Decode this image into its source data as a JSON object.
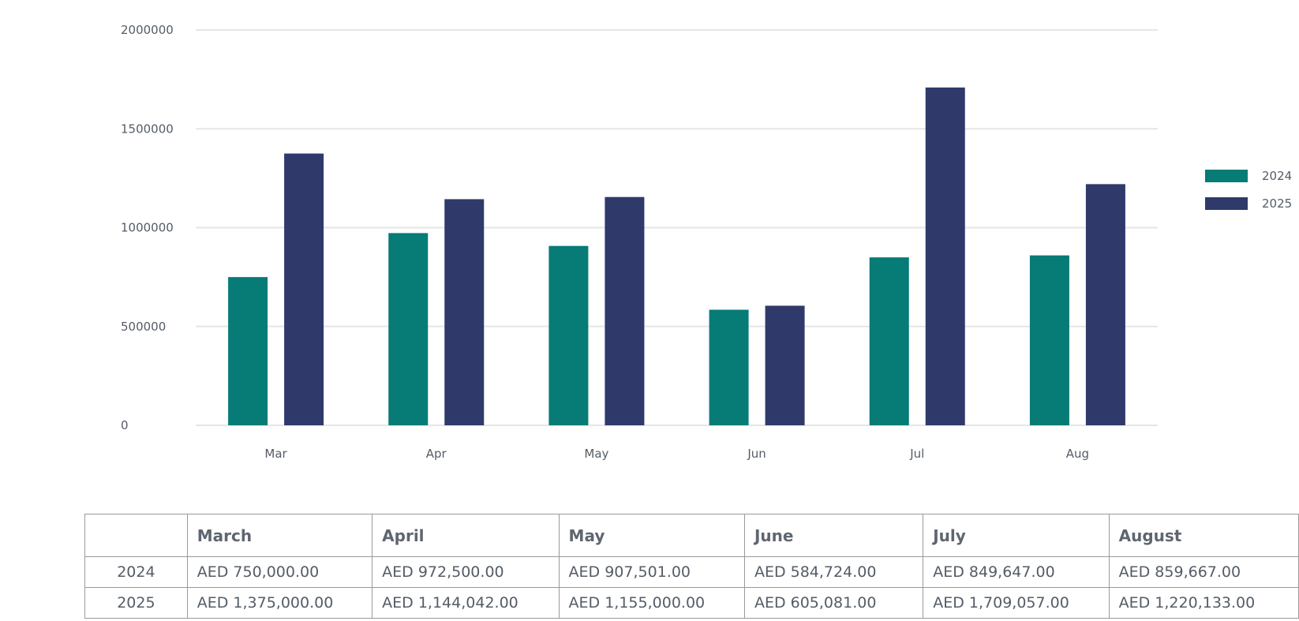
{
  "chart_data": {
    "type": "bar",
    "categories": [
      "Mar",
      "Apr",
      "May",
      "Jun",
      "Jul",
      "Aug"
    ],
    "series": [
      {
        "name": "2024",
        "color": "#077b76",
        "values": [
          750000,
          972500,
          907501,
          584724,
          849647,
          859667
        ]
      },
      {
        "name": "2025",
        "color": "#2f3a6b",
        "values": [
          1375000,
          1144042,
          1155000,
          605081,
          1709057,
          1220133
        ]
      }
    ],
    "y_ticks": [
      "0",
      "500000",
      "1000000",
      "1500000",
      "2000000"
    ],
    "ylim": [
      0,
      2000000
    ],
    "grid": true,
    "legend_position": "right"
  },
  "table": {
    "headers": [
      "",
      "March",
      "April",
      "May",
      "June",
      "July",
      "August"
    ],
    "rows": [
      {
        "label": "2024",
        "cells": [
          "AED 750,000.00",
          "AED 972,500.00",
          "AED 907,501.00",
          "AED 584,724.00",
          "AED 849,647.00",
          "AED 859,667.00"
        ]
      },
      {
        "label": "2025",
        "cells": [
          "AED 1,375,000.00",
          "AED 1,144,042.00",
          "AED 1,155,000.00",
          "AED 605,081.00",
          "AED 1,709,057.00",
          "AED 1,220,133.00"
        ]
      }
    ]
  }
}
